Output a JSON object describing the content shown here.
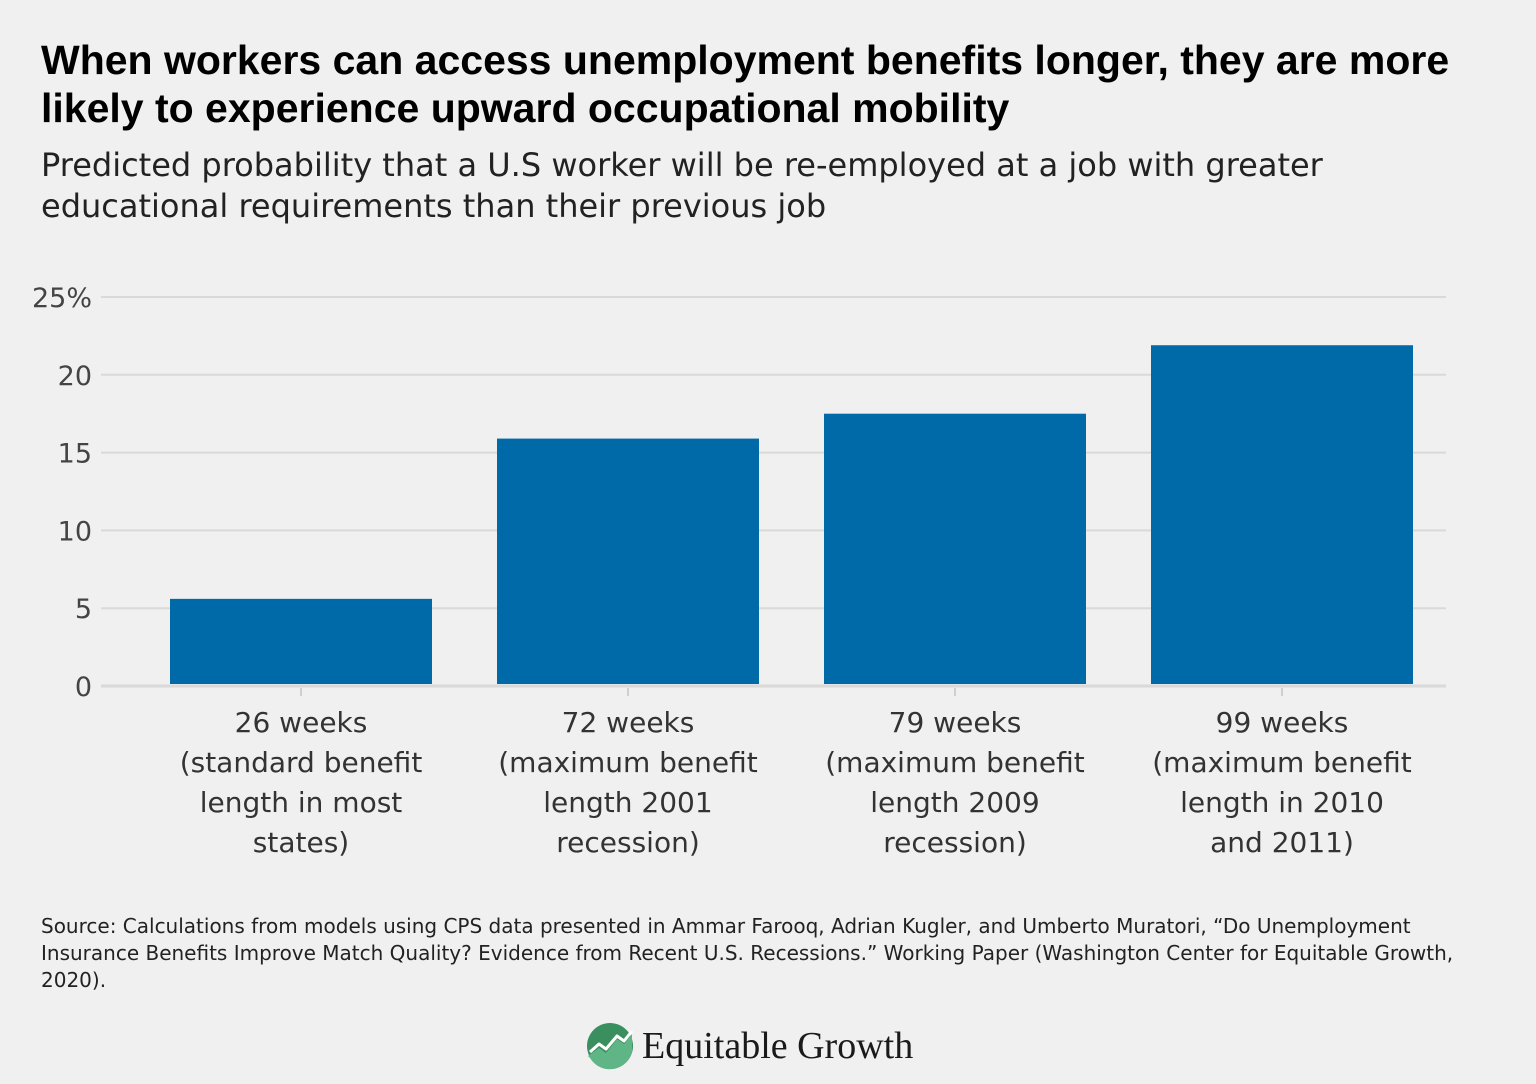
{
  "header": {
    "title": "When workers can access unemployment benefits longer, they are more likely to experience upward occupational mobility",
    "subtitle": "Predicted probability that a U.S worker will be re-employed at a job with greater educational requirements than their previous job"
  },
  "chart_data": {
    "type": "bar",
    "categories": [
      [
        "26 weeks",
        "(standard benefit",
        "length in most",
        "states)"
      ],
      [
        "72 weeks",
        "(maximum benefit",
        "length 2001",
        "recession)"
      ],
      [
        "79 weeks",
        "(maximum benefit",
        "length 2009",
        "recession)"
      ],
      [
        "99 weeks",
        "(maximum benefit",
        "length in 2010",
        "and 2011)"
      ]
    ],
    "values": [
      5.6,
      15.9,
      17.5,
      21.9
    ],
    "ylim": [
      0,
      25
    ],
    "yticks": [
      0,
      5,
      10,
      15,
      20,
      25
    ],
    "ytick_labels": [
      "0",
      "5",
      "10",
      "15",
      "20",
      "25%"
    ],
    "grid": true,
    "bar_color": "#0069a8",
    "grid_color": "#d9d9d9"
  },
  "footer": {
    "source": "Source: Calculations from models using CPS data presented in Ammar Farooq, Adrian Kugler, and Umberto Muratori, “Do Unemployment Insurance Benefits Improve Match Quality? Evidence from Recent U.S. Recessions.” Working Paper (Washington Center for Equitable Growth, 2020).",
    "brand_name": "Equitable Growth",
    "brand_icon": "equitable-growth-logo-icon",
    "brand_color": "#3a8f5e"
  }
}
